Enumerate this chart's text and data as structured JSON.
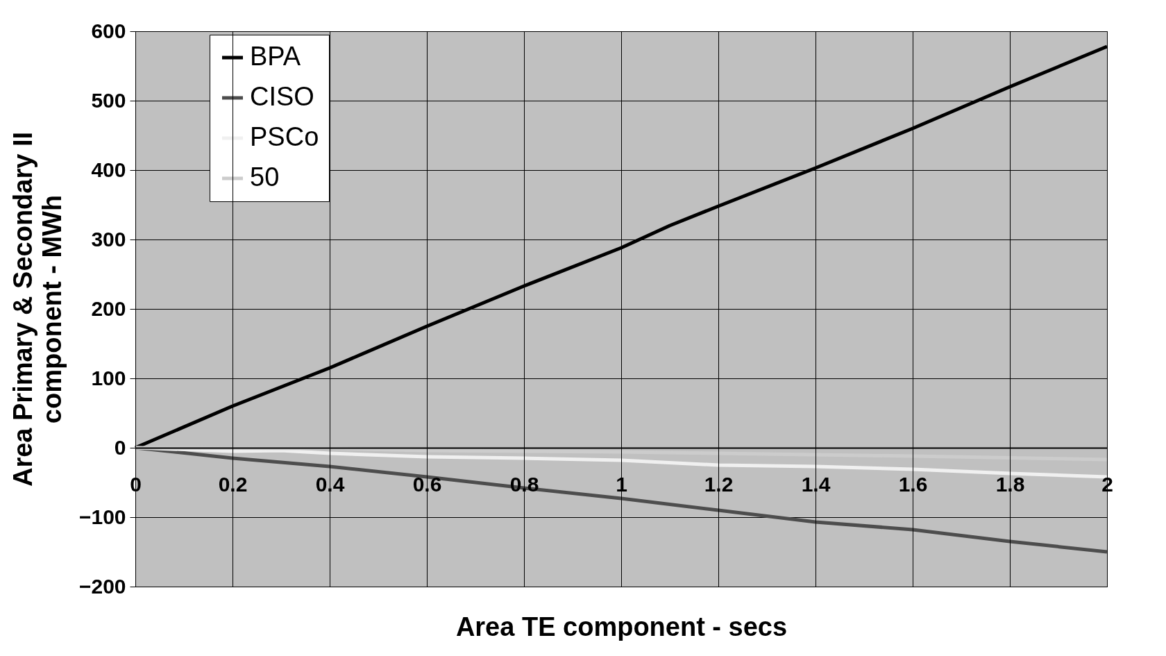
{
  "chart_data": {
    "type": "line",
    "xlabel": "Area TE component - secs",
    "ylabel": "Area Primary & Secondary  II component - MWh",
    "xlim": [
      0,
      2
    ],
    "xticks": [
      0,
      0.2,
      0.4,
      0.6,
      0.8,
      1,
      1.2,
      1.4,
      1.6,
      1.8,
      2
    ],
    "ylim": [
      -200,
      600
    ],
    "yticks": [
      -200,
      -100,
      0,
      100,
      200,
      300,
      400,
      500,
      600
    ],
    "grid": true,
    "legend": "top left",
    "marker": "none",
    "line_style": "solid",
    "series": [
      {
        "name": "BPA",
        "color": "#000000",
        "x": [
          0,
          0.2,
          0.4,
          0.6,
          0.8,
          1.0,
          1.1,
          1.2,
          1.4,
          1.6,
          1.8,
          2
        ],
        "values": [
          0,
          60,
          115,
          175,
          233,
          288,
          320,
          348,
          403,
          460,
          520,
          578
        ]
      },
      {
        "name": "CISO",
        "color": "#4d4d4d",
        "x": [
          0,
          0.2,
          0.4,
          0.6,
          0.8,
          1.0,
          1.2,
          1.4,
          1.6,
          1.8,
          2
        ],
        "values": [
          0,
          -15,
          -27,
          -42,
          -58,
          -73,
          -90,
          -107,
          -118,
          -135,
          -150
        ]
      },
      {
        "name": "PSCo",
        "color": "#f0f0f0",
        "x": [
          0,
          0.2,
          0.3,
          0.4,
          0.6,
          0.8,
          1.0,
          1.2,
          1.4,
          1.6,
          1.8,
          2
        ],
        "values": [
          0,
          -5,
          -4,
          -8,
          -13,
          -15,
          -18,
          -25,
          -27,
          -31,
          -37,
          -42
        ]
      },
      {
        "name": "50",
        "color": "#cccccc",
        "x": [
          0,
          0.4,
          0.6,
          1.0,
          1.2,
          1.6,
          2
        ],
        "values": [
          0,
          -1,
          -4,
          -6,
          -8,
          -12,
          -17
        ]
      }
    ]
  }
}
